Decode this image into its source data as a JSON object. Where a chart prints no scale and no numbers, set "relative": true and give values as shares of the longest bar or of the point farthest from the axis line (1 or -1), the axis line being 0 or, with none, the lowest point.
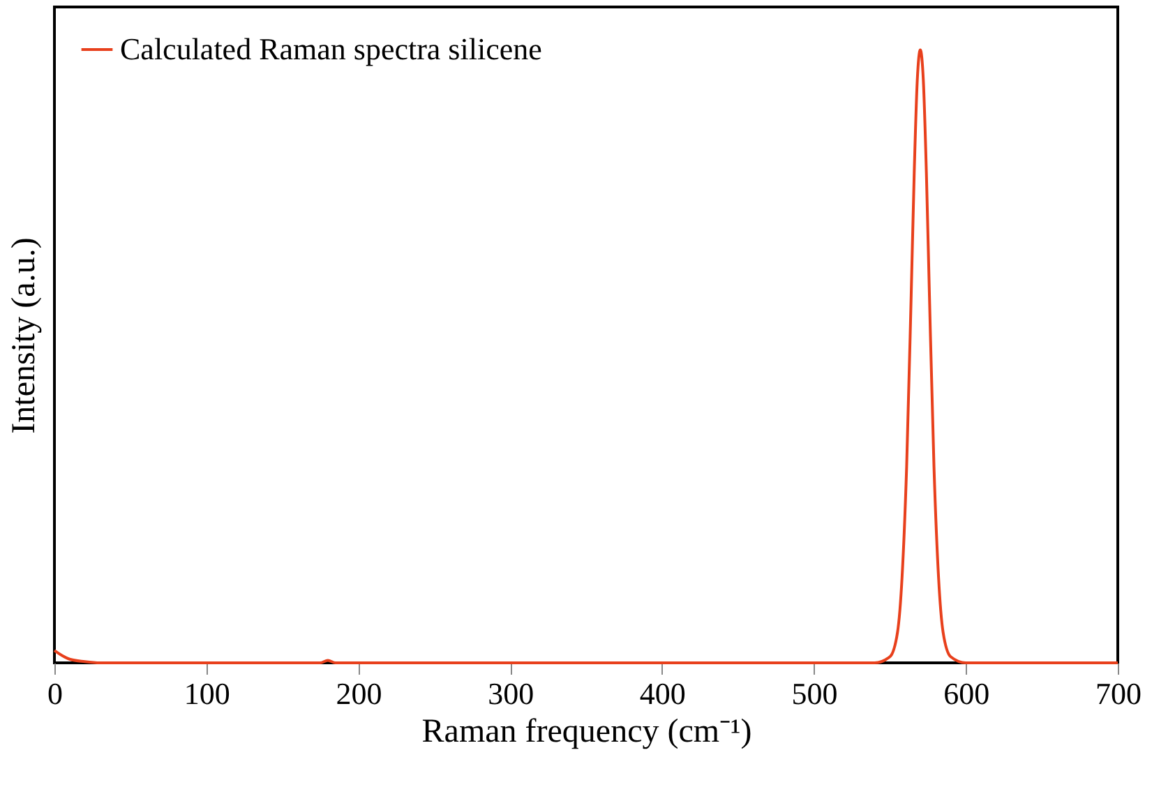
{
  "chart_data": {
    "type": "line",
    "xlabel": "Raman frequency (cm⁻¹)",
    "ylabel": "Intensity (a.u.)",
    "relative": true,
    "xlim": [
      0,
      700
    ],
    "xticks": [
      0,
      100,
      200,
      300,
      400,
      500,
      600,
      700
    ],
    "legend": "top left",
    "grid": false,
    "series": [
      {
        "name": "Calculated Raman spectra silicene",
        "color": "#e8401c",
        "x": [
          0,
          5,
          10,
          20,
          30,
          100,
          175,
          180,
          185,
          300,
          540,
          550,
          555,
          558,
          561,
          564,
          566,
          568,
          570,
          572,
          574,
          576,
          579,
          582,
          585,
          590,
          600,
          700
        ],
        "values": [
          0.02,
          0.012,
          0.006,
          0.002,
          0,
          0,
          0,
          0.004,
          0,
          0,
          0,
          0.01,
          0.05,
          0.14,
          0.32,
          0.6,
          0.8,
          0.95,
          1,
          0.95,
          0.8,
          0.6,
          0.32,
          0.14,
          0.05,
          0.01,
          0,
          0
        ]
      }
    ]
  }
}
